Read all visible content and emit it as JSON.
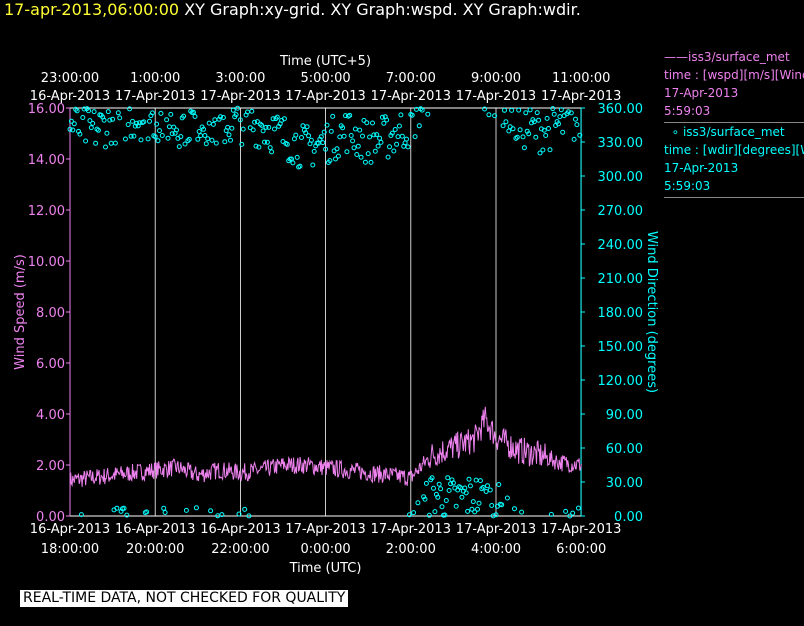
{
  "header": {
    "timestamp": "17-apr-2013,06:00:00",
    "graphs": "XY Graph:xy-grid.  XY Graph:wspd.  XY Graph:wdir."
  },
  "legend": {
    "wspd": {
      "name": "iss3/surface_met",
      "desc": "time : [wspd][m/s][Wind",
      "date": "17-Apr-2013",
      "time": "5:59:03",
      "color": "#ee82ee"
    },
    "wdir": {
      "name": "iss3/surface_met",
      "desc": "time : [wdir][degrees][W",
      "date": "17-Apr-2013",
      "time": "5:59:03",
      "color": "#00ffff"
    }
  },
  "disclaimer": "REAL-TIME DATA, NOT CHECKED FOR QUALITY",
  "chart_data": {
    "type": "line",
    "x_top_label": "Time (UTC+5)",
    "x_bottom_label": "Time (UTC)",
    "y_left_label": "Wind Speed (m/s)",
    "y_right_label": "Wind Direction (degrees)",
    "x_range_hours_utc": [
      "16-Apr-2013 17:00:00",
      "17-Apr-2013 06:36:00"
    ],
    "bottom_ticks": [
      {
        "date": "16-Apr-2013",
        "time": "18:00:00"
      },
      {
        "date": "16-Apr-2013",
        "time": "20:00:00"
      },
      {
        "date": "16-Apr-2013",
        "time": "22:00:00"
      },
      {
        "date": "17-Apr-2013",
        "time": "0:00:00"
      },
      {
        "date": "17-Apr-2013",
        "time": "2:00:00"
      },
      {
        "date": "17-Apr-2013",
        "time": "4:00:00"
      },
      {
        "date": "17-Apr-2013",
        "time": "6:00:00"
      }
    ],
    "top_ticks": [
      {
        "time": "23:00:00",
        "date": "16-Apr-2013"
      },
      {
        "time": "1:00:00",
        "date": "17-Apr-2013"
      },
      {
        "time": "3:00:00",
        "date": "17-Apr-2013"
      },
      {
        "time": "5:00:00",
        "date": "17-Apr-2013"
      },
      {
        "time": "7:00:00",
        "date": "17-Apr-2013"
      },
      {
        "time": "9:00:00",
        "date": "17-Apr-2013"
      },
      {
        "time": "11:00:00",
        "date": "17-Apr-2013"
      }
    ],
    "y_left": {
      "min": 0,
      "max": 16,
      "ticks": [
        "0.00",
        "2.00",
        "4.00",
        "6.00",
        "8.00",
        "10.00",
        "12.00",
        "14.00",
        "16.00"
      ]
    },
    "y_right": {
      "min": 0,
      "max": 360,
      "ticks": [
        "0.00",
        "30.00",
        "60.00",
        "90.00",
        "120.00",
        "150.00",
        "180.00",
        "210.00",
        "240.00",
        "270.00",
        "300.00",
        "330.00",
        "360.00"
      ]
    },
    "grid": "vertical",
    "series": [
      {
        "name": "iss3/surface_met",
        "quantity": "wspd",
        "axis": "left",
        "color": "#ee82ee",
        "style": "line",
        "x_hours_since_start_note": "",
        "points": [
          [
            "16-Apr-2013 18:00",
            1.4
          ],
          [
            "16-Apr-2013 18:30",
            1.5
          ],
          [
            "16-Apr-2013 19:00",
            1.6
          ],
          [
            "16-Apr-2013 19:30",
            1.7
          ],
          [
            "16-Apr-2013 20:00",
            1.8
          ],
          [
            "16-Apr-2013 20:30",
            1.9
          ],
          [
            "16-Apr-2013 21:00",
            1.6
          ],
          [
            "16-Apr-2013 21:30",
            1.8
          ],
          [
            "16-Apr-2013 22:00",
            1.7
          ],
          [
            "16-Apr-2013 22:30",
            1.8
          ],
          [
            "16-Apr-2013 23:00",
            2.0
          ],
          [
            "16-Apr-2013 23:30",
            2.0
          ],
          [
            "17-Apr-2013 00:00",
            1.9
          ],
          [
            "17-Apr-2013 00:30",
            1.8
          ],
          [
            "17-Apr-2013 01:00",
            1.7
          ],
          [
            "17-Apr-2013 01:30",
            1.6
          ],
          [
            "17-Apr-2013 02:00",
            1.5
          ],
          [
            "17-Apr-2013 02:30",
            2.4
          ],
          [
            "17-Apr-2013 03:00",
            2.7
          ],
          [
            "17-Apr-2013 03:30",
            3.0
          ],
          [
            "17-Apr-2013 03:45",
            3.8
          ],
          [
            "17-Apr-2013 04:00",
            3.1
          ],
          [
            "17-Apr-2013 04:30",
            2.6
          ],
          [
            "17-Apr-2013 05:00",
            2.4
          ],
          [
            "17-Apr-2013 05:30",
            2.1
          ],
          [
            "17-Apr-2013 06:00",
            2.0
          ]
        ]
      },
      {
        "name": "iss3/surface_met",
        "quantity": "wdir",
        "axis": "right",
        "color": "#00ffff",
        "style": "markers",
        "points": [
          [
            "16-Apr-2013 18:00",
            345
          ],
          [
            "16-Apr-2013 18:30",
            340
          ],
          [
            "16-Apr-2013 19:00",
            348
          ],
          [
            "16-Apr-2013 19:30",
            352
          ],
          [
            "16-Apr-2013 20:00",
            350
          ],
          [
            "16-Apr-2013 20:30",
            345
          ],
          [
            "16-Apr-2013 21:00",
            350
          ],
          [
            "16-Apr-2013 21:30",
            343
          ],
          [
            "16-Apr-2013 22:00",
            348
          ],
          [
            "16-Apr-2013 22:30",
            345
          ],
          [
            "16-Apr-2013 23:00",
            335
          ],
          [
            "16-Apr-2013 23:30",
            325
          ],
          [
            "17-Apr-2013 00:00",
            330
          ],
          [
            "17-Apr-2013 00:30",
            340
          ],
          [
            "17-Apr-2013 01:00",
            330
          ],
          [
            "17-Apr-2013 01:30",
            335
          ],
          [
            "17-Apr-2013 02:00",
            345
          ],
          [
            "17-Apr-2013 02:30",
            20
          ],
          [
            "17-Apr-2013 03:00",
            15
          ],
          [
            "17-Apr-2013 03:30",
            18
          ],
          [
            "17-Apr-2013 04:00",
            12
          ],
          [
            "17-Apr-2013 04:30",
            345
          ],
          [
            "17-Apr-2013 05:00",
            340
          ],
          [
            "17-Apr-2013 05:30",
            345
          ],
          [
            "17-Apr-2013 06:00",
            350
          ]
        ]
      }
    ]
  }
}
